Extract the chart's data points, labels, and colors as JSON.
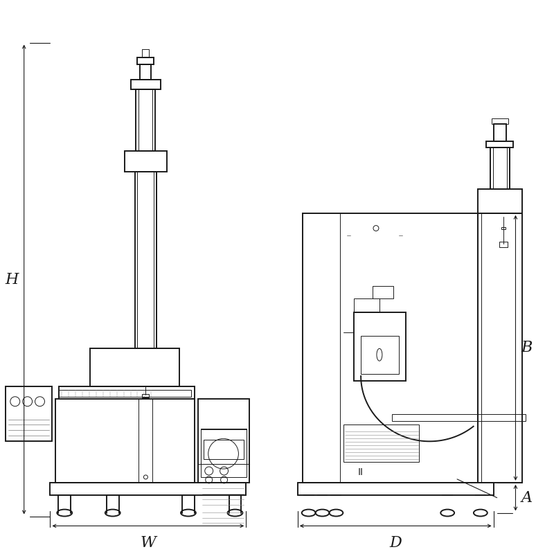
{
  "bg_color": "#ffffff",
  "line_color": "#1a1a1a",
  "dim_color": "#1a1a1a",
  "fig_width": 8.0,
  "fig_height": 8.0,
  "labels": {
    "H": "H",
    "W": "W",
    "D": "D",
    "A": "A",
    "B": "B"
  },
  "label_fontsize": 16,
  "lw_main": 1.4,
  "lw_thin": 0.7,
  "lw_dim": 0.8,
  "lw_vt": 1.0
}
